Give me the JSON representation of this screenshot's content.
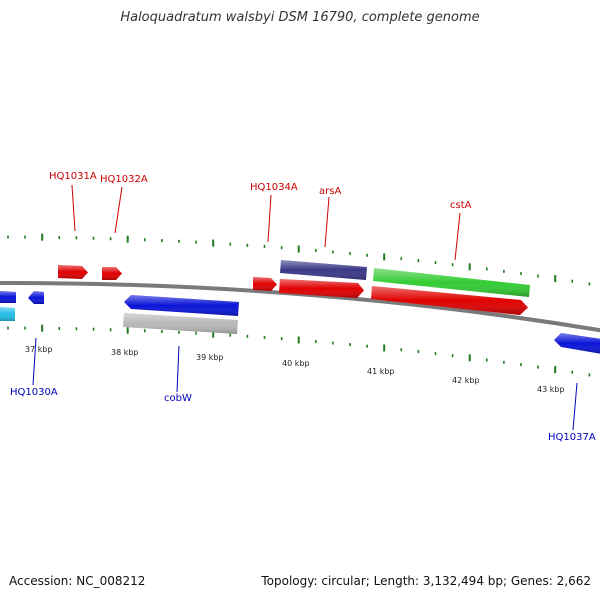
{
  "title": "Haloquadratum walsbyi DSM 16790, complete genome",
  "footer": {
    "accession": "Accession: NC_008212",
    "summary": "Topology: circular; Length: 3,132,494 bp; Genes: 2,662"
  },
  "colors": {
    "backbone": "#7a7a7a",
    "tick": "#1f7a1f",
    "forward_label": "#cc0000",
    "reverse_label": "#0000bb",
    "red": "#e00000",
    "blue": "#0a14d8",
    "green": "#33cc33",
    "purple": "#3a3888",
    "gray": "#b8b8b8",
    "cyan": "#22bde8"
  },
  "scale_labels": [
    "37 kbp",
    "38 kbp",
    "39 kbp",
    "40 kbp",
    "41 kbp",
    "42 kbp",
    "43 kbp"
  ],
  "gene_labels": {
    "forward": [
      "HQ1031A",
      "HQ1032A",
      "HQ1034A",
      "arsA",
      "cstA"
    ],
    "reverse": [
      "HQ1030A",
      "cobW",
      "HQ1037A"
    ]
  }
}
